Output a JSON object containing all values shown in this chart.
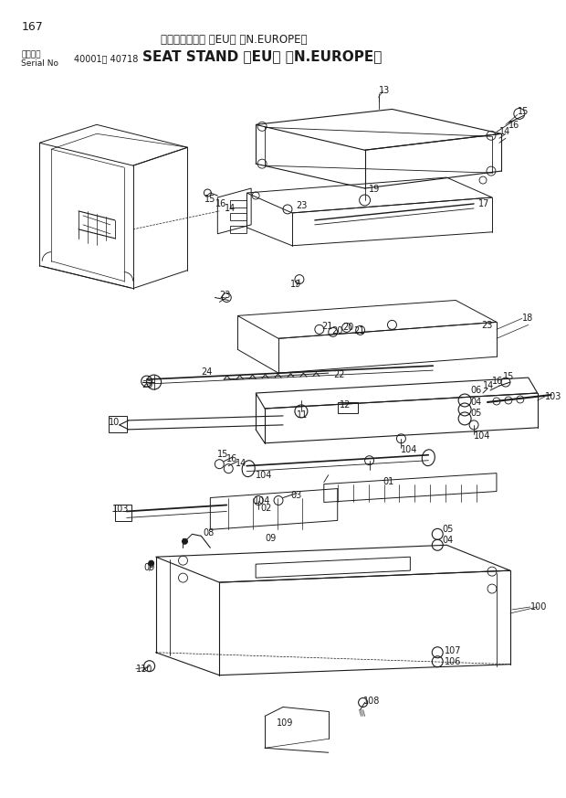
{
  "page_number": "167",
  "title_japanese": "シートスタンド ＜EU＞ ＜N.EUROPE＞",
  "title_english": "SEAT STAND ＜EU＞ ＜N.EUROPE＞",
  "serial_label1": "適用号機",
  "serial_label2": "Serial No",
  "serial_range": "40001～ 40718",
  "bg_color": "#ffffff",
  "line_color": "#1a1a1a",
  "text_color": "#1a1a1a",
  "fig_width": 6.2,
  "fig_height": 8.73,
  "dpi": 100
}
